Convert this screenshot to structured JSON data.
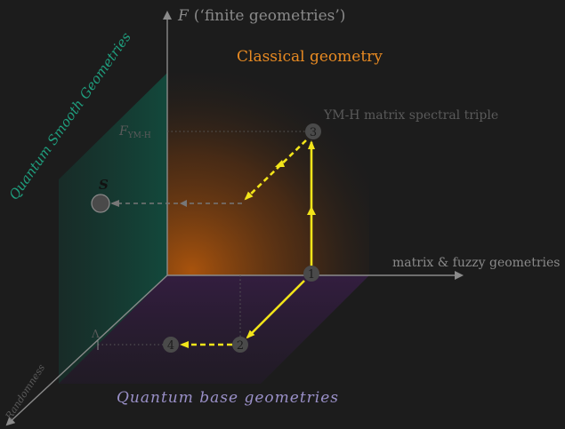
{
  "axes": {
    "vertical": {
      "letter": "F",
      "text": "(‘finite geometries’)"
    },
    "horizontal": {
      "text": "matrix & fuzzy geometries"
    },
    "depth": {
      "text": "Randomness"
    }
  },
  "regions": {
    "classical": "Classical geometry",
    "quantum_smooth": "Quantum Smooth Geometries",
    "quantum_base": "Quantum base geometries"
  },
  "labels": {
    "ymh_triple": "YM-H matrix spectral triple",
    "f_tick_main": "F",
    "f_tick_sub": "YM-H",
    "s_label": "S",
    "lambda": "Λ"
  },
  "nodes": [
    {
      "id": "node-1",
      "label": "1"
    },
    {
      "id": "node-2",
      "label": "2"
    },
    {
      "id": "node-3",
      "label": "3"
    },
    {
      "id": "node-4",
      "label": "4"
    },
    {
      "id": "node-s",
      "label": ""
    }
  ],
  "colors": {
    "background": "#1c1c1c",
    "axis": "#8a8a8a",
    "classical_label": "#e88a22",
    "quantum_smooth_label": "#1f9e7e",
    "quantum_base_label": "#9a90c8",
    "arrow": "#f2e41a",
    "node_fill": "#4a4a4a",
    "node_text": "#1c1c1c",
    "dim_text": "#5a5a5a"
  }
}
